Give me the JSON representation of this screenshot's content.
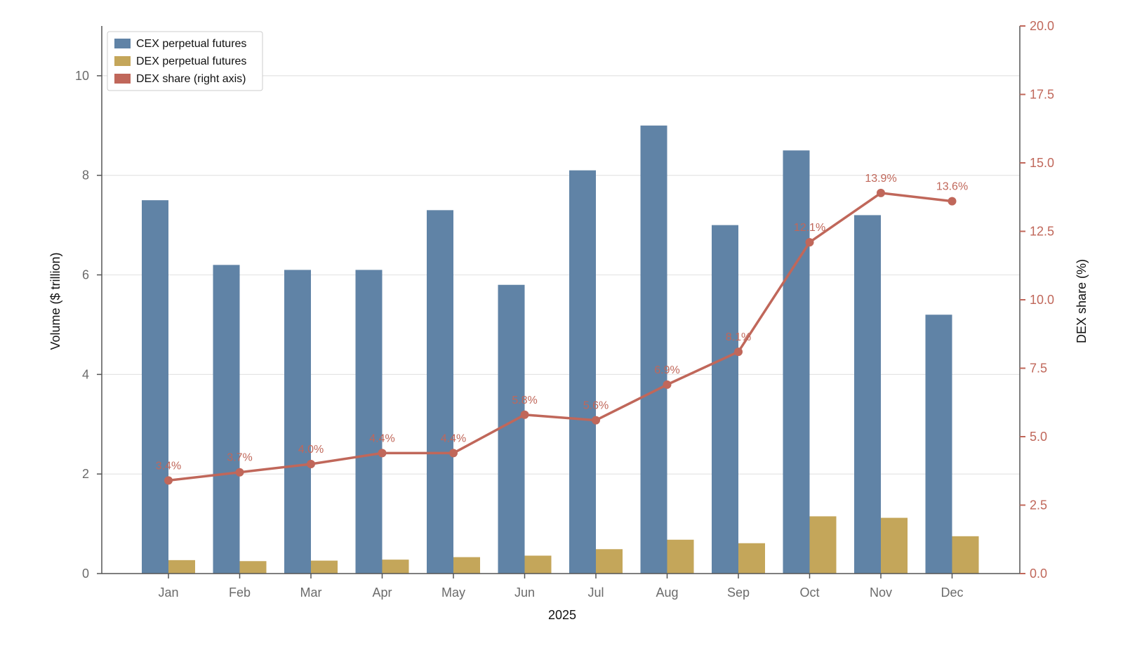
{
  "chart_data": {
    "type": "bar",
    "categories": [
      "Jan",
      "Feb",
      "Mar",
      "Apr",
      "May",
      "Jun",
      "Jul",
      "Aug",
      "Sep",
      "Oct",
      "Nov",
      "Dec"
    ],
    "series": [
      {
        "name": "CEX perpetual futures",
        "type": "bar",
        "axis": "left",
        "color": "#6083a6",
        "values": [
          7.5,
          6.2,
          6.1,
          6.1,
          7.3,
          5.8,
          8.1,
          9.0,
          7.0,
          8.5,
          7.2,
          5.2
        ]
      },
      {
        "name": "DEX perpetual futures",
        "type": "bar",
        "axis": "left",
        "color": "#c4a65a",
        "values": [
          0.27,
          0.25,
          0.26,
          0.28,
          0.33,
          0.36,
          0.49,
          0.68,
          0.61,
          1.15,
          1.12,
          0.75
        ]
      },
      {
        "name": "DEX share (right axis)",
        "type": "line",
        "axis": "right",
        "color": "#c0675a",
        "values": [
          3.4,
          3.7,
          4.0,
          4.4,
          4.4,
          5.8,
          5.6,
          6.9,
          8.1,
          12.1,
          13.9,
          13.6
        ],
        "labels": [
          "3.4%",
          "3.7%",
          "4.0%",
          "4.4%",
          "4.4%",
          "5.8%",
          "5.6%",
          "6.9%",
          "8.1%",
          "12.1%",
          "13.9%",
          "13.6%"
        ]
      }
    ],
    "xlabel": "2025",
    "ylabel": "Volume ($ trillion)",
    "y2label": "DEX share (%)",
    "ylim": [
      0,
      11
    ],
    "y2lim": [
      0,
      20
    ],
    "yticks": [
      0,
      2,
      4,
      6,
      8,
      10
    ],
    "yticks_labels": [
      "0",
      "2",
      "4",
      "6",
      "8",
      "10"
    ],
    "y2ticks": [
      0,
      2.5,
      5,
      7.5,
      10,
      12.5,
      15,
      17.5,
      20
    ],
    "y2ticks_labels": [
      "0.0",
      "2.5",
      "5.0",
      "7.5",
      "10.0",
      "12.5",
      "15.0",
      "17.5",
      "20.0"
    ],
    "grid": true,
    "legend": "top-left"
  }
}
